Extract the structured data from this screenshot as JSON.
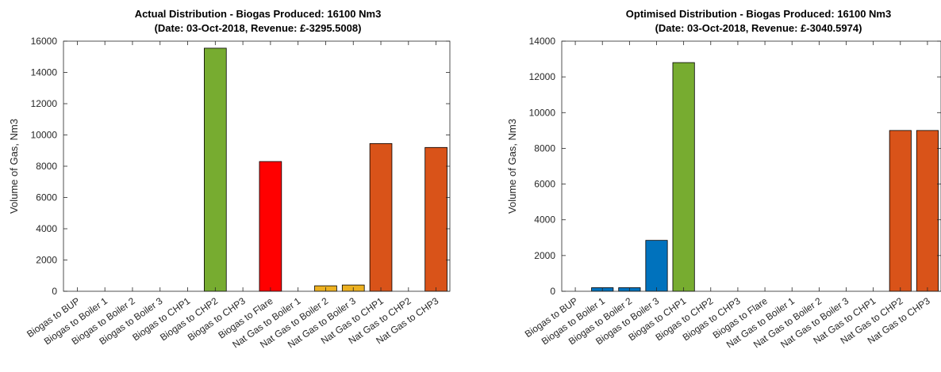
{
  "chart_data": [
    {
      "type": "bar",
      "title": "Actual Distribution - Biogas Produced: 16100 Nm3",
      "subtitle": "(Date: 03-Oct-2018, Revenue: £-3295.5008)",
      "ylabel": "Volume of Gas, Nm3",
      "ylim": [
        0,
        16000
      ],
      "yticks": [
        0,
        2000,
        4000,
        6000,
        8000,
        10000,
        12000,
        14000,
        16000
      ],
      "ytick_labels": [
        "0",
        "2000",
        "4000",
        "6000",
        "8000",
        "10000",
        "12000",
        "14000",
        "16000"
      ],
      "categories": [
        "Biogas to BUP",
        "Biogas to Boiler 1",
        "Biogas to Boiler 2",
        "Biogas to Boiler 3",
        "Biogas to CHP1",
        "Biogas to CHP2",
        "Biogas to CHP3",
        "Biogas to Flare",
        "Nat Gas to Boiler 1",
        "Nat Gas to Boiler 2",
        "Nat Gas to Boiler 3",
        "Nat Gas to CHP1",
        "Nat Gas to CHP2",
        "Nat Gas to CHP3"
      ],
      "values": [
        0,
        0,
        0,
        0,
        0,
        15550,
        0,
        8300,
        0,
        350,
        400,
        9450,
        0,
        9200
      ],
      "colors": [
        "#0072BD",
        "#0072BD",
        "#0072BD",
        "#0072BD",
        "#77AC30",
        "#77AC30",
        "#77AC30",
        "#FF0000",
        "#EDB120",
        "#EDB120",
        "#EDB120",
        "#D95319",
        "#D95319",
        "#D95319"
      ],
      "grid": false,
      "legend": "none"
    },
    {
      "type": "bar",
      "title": "Optimised Distribution - Biogas Produced: 16100 Nm3",
      "subtitle": "(Date: 03-Oct-2018, Revenue: £-3040.5974)",
      "ylabel": "Volume of Gas, Nm3",
      "ylim": [
        0,
        14000
      ],
      "yticks": [
        0,
        2000,
        4000,
        6000,
        8000,
        10000,
        12000,
        14000
      ],
      "ytick_labels": [
        "0",
        "2000",
        "4000",
        "6000",
        "8000",
        "10000",
        "12000",
        "14000"
      ],
      "categories": [
        "Biogas to BUP",
        "Biogas to Boiler 1",
        "Biogas to Boiler 2",
        "Biogas to Boiler 3",
        "Biogas to CHP1",
        "Biogas to CHP2",
        "Biogas to CHP3",
        "Biogas to Flare",
        "Nat Gas to Boiler 1",
        "Nat Gas to Boiler 2",
        "Nat Gas to Boiler 3",
        "Nat Gas to CHP1",
        "Nat Gas to CHP2",
        "Nat Gas to CHP3"
      ],
      "values": [
        0,
        200,
        200,
        2850,
        12800,
        0,
        0,
        0,
        0,
        0,
        0,
        0,
        9000,
        9000
      ],
      "colors": [
        "#0072BD",
        "#0072BD",
        "#0072BD",
        "#0072BD",
        "#77AC30",
        "#77AC30",
        "#77AC30",
        "#FF0000",
        "#EDB120",
        "#EDB120",
        "#EDB120",
        "#D95319",
        "#D95319",
        "#D95319"
      ],
      "grid": false,
      "legend": "none"
    }
  ]
}
